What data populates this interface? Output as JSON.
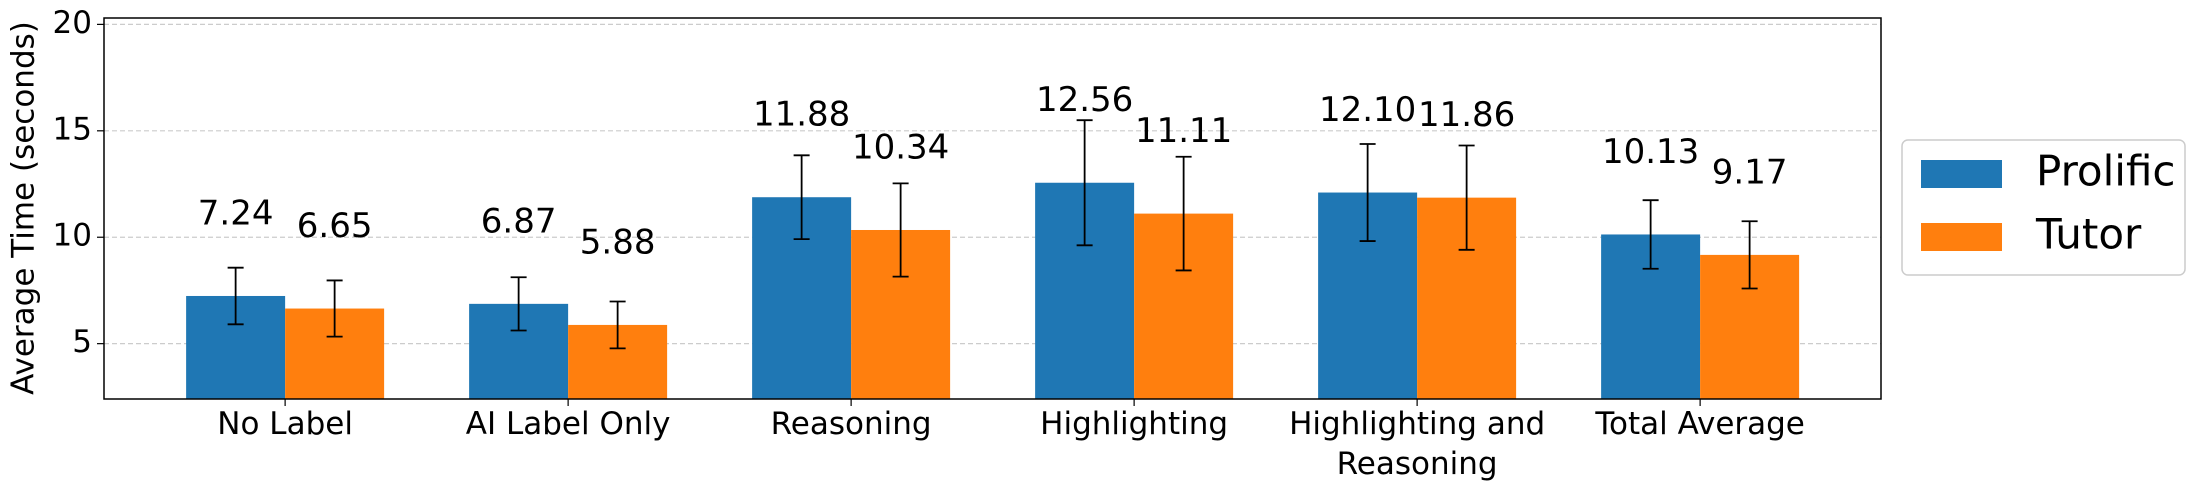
{
  "chart_data": {
    "type": "bar",
    "ylabel": "Average Time (seconds)",
    "categories": [
      "No Label",
      "AI Label Only",
      "Reasoning",
      "Highlighting",
      "Highlighting and\nReasoning",
      "Total Average"
    ],
    "series": [
      {
        "name": "Prolific",
        "color": "#1f77b4",
        "values": [
          7.24,
          6.87,
          11.88,
          12.56,
          12.1,
          10.13
        ],
        "value_labels": [
          "7.24",
          "6.87",
          "11.88",
          "12.56",
          "12.10",
          "10.13"
        ],
        "errors": [
          1.33,
          1.25,
          1.97,
          2.94,
          2.28,
          1.61
        ]
      },
      {
        "name": "Tutor",
        "color": "#ff7f0e",
        "values": [
          6.65,
          5.88,
          10.34,
          11.11,
          11.86,
          9.17
        ],
        "value_labels": [
          "6.65",
          "5.88",
          "10.34",
          "11.11",
          "11.86",
          "9.17"
        ],
        "errors": [
          1.32,
          1.1,
          2.19,
          2.67,
          2.45,
          1.58
        ]
      }
    ],
    "ylim": [
      2.4,
      20.3
    ],
    "yticks": [
      5,
      10,
      15,
      20
    ],
    "grid": true,
    "legend": "outside right"
  }
}
